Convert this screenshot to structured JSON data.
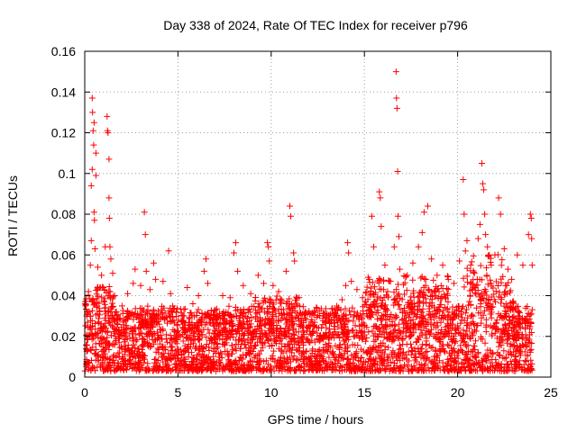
{
  "chart_data": {
    "type": "scatter",
    "title": "Day 338 of 2024, Rate Of TEC Index for receiver p796",
    "xlabel": "GPS time / hours",
    "ylabel": "ROTI / TECUs",
    "xlim": [
      0,
      25
    ],
    "ylim": [
      0,
      0.16
    ],
    "xticks": [
      0,
      5,
      10,
      15,
      20,
      25
    ],
    "yticks": [
      0,
      0.02,
      0.04,
      0.06,
      0.08,
      0.1,
      0.12,
      0.14,
      0.16
    ],
    "xtick_labels": [
      "0",
      "5",
      "10",
      "15",
      "20",
      "25"
    ],
    "ytick_labels": [
      "0",
      "0.02",
      "0.04",
      "0.06",
      "0.08",
      "0.1",
      "0.12",
      "0.14",
      "0.16"
    ],
    "grid": true,
    "marker": "+",
    "color": "#ff0000",
    "time_range_hours": [
      0,
      24
    ],
    "dense_band": [
      0.003,
      0.02
    ],
    "series": [
      {
        "name": "ROTI",
        "points": [
          [
            0.1,
            0.03
          ],
          [
            0.2,
            0.042
          ],
          [
            0.3,
            0.055
          ],
          [
            0.35,
            0.067
          ],
          [
            0.35,
            0.094
          ],
          [
            0.4,
            0.102
          ],
          [
            0.4,
            0.137
          ],
          [
            0.42,
            0.13
          ],
          [
            0.45,
            0.121
          ],
          [
            0.48,
            0.114
          ],
          [
            0.5,
            0.125
          ],
          [
            0.5,
            0.081
          ],
          [
            0.52,
            0.077
          ],
          [
            0.55,
            0.063
          ],
          [
            0.6,
            0.11
          ],
          [
            0.6,
            0.099
          ],
          [
            0.7,
            0.054
          ],
          [
            0.9,
            0.05
          ],
          [
            1.0,
            0.044
          ],
          [
            1.1,
            0.064
          ],
          [
            1.2,
            0.128
          ],
          [
            1.22,
            0.121
          ],
          [
            1.25,
            0.12
          ],
          [
            1.3,
            0.107
          ],
          [
            1.3,
            0.088
          ],
          [
            1.32,
            0.078
          ],
          [
            1.35,
            0.064
          ],
          [
            1.4,
            0.058
          ],
          [
            1.5,
            0.051
          ],
          [
            1.6,
            0.04
          ],
          [
            2.0,
            0.035
          ],
          [
            2.3,
            0.041
          ],
          [
            2.6,
            0.046
          ],
          [
            2.7,
            0.053
          ],
          [
            3.0,
            0.045
          ],
          [
            3.2,
            0.081
          ],
          [
            3.25,
            0.07
          ],
          [
            3.3,
            0.052
          ],
          [
            3.5,
            0.043
          ],
          [
            3.7,
            0.056
          ],
          [
            3.8,
            0.048
          ],
          [
            4.2,
            0.047
          ],
          [
            4.5,
            0.062
          ],
          [
            4.6,
            0.041
          ],
          [
            4.9,
            0.032
          ],
          [
            5.5,
            0.044
          ],
          [
            5.8,
            0.036
          ],
          [
            6.1,
            0.04
          ],
          [
            6.4,
            0.052
          ],
          [
            6.5,
            0.058
          ],
          [
            6.6,
            0.046
          ],
          [
            7.0,
            0.033
          ],
          [
            7.4,
            0.04
          ],
          [
            7.8,
            0.039
          ],
          [
            8.0,
            0.061
          ],
          [
            8.1,
            0.066
          ],
          [
            8.2,
            0.052
          ],
          [
            8.5,
            0.045
          ],
          [
            8.9,
            0.041
          ],
          [
            9.3,
            0.05
          ],
          [
            9.6,
            0.046
          ],
          [
            9.8,
            0.066
          ],
          [
            9.85,
            0.064
          ],
          [
            9.9,
            0.057
          ],
          [
            10.1,
            0.045
          ],
          [
            10.4,
            0.042
          ],
          [
            10.8,
            0.052
          ],
          [
            11.0,
            0.084
          ],
          [
            11.05,
            0.079
          ],
          [
            11.2,
            0.061
          ],
          [
            11.25,
            0.057
          ],
          [
            11.5,
            0.039
          ],
          [
            11.8,
            0.031
          ],
          [
            12.2,
            0.027
          ],
          [
            12.6,
            0.03
          ],
          [
            13.0,
            0.031
          ],
          [
            13.4,
            0.033
          ],
          [
            13.8,
            0.038
          ],
          [
            14.0,
            0.045
          ],
          [
            14.1,
            0.066
          ],
          [
            14.15,
            0.061
          ],
          [
            14.3,
            0.047
          ],
          [
            14.6,
            0.043
          ],
          [
            14.9,
            0.039
          ],
          [
            15.2,
            0.049
          ],
          [
            15.4,
            0.079
          ],
          [
            15.5,
            0.064
          ],
          [
            15.8,
            0.091
          ],
          [
            15.85,
            0.088
          ],
          [
            15.9,
            0.074
          ],
          [
            16.1,
            0.055
          ],
          [
            16.4,
            0.047
          ],
          [
            16.6,
            0.064
          ],
          [
            16.7,
            0.15
          ],
          [
            16.72,
            0.137
          ],
          [
            16.75,
            0.132
          ],
          [
            16.78,
            0.101
          ],
          [
            16.8,
            0.079
          ],
          [
            16.85,
            0.069
          ],
          [
            16.9,
            0.053
          ],
          [
            17.3,
            0.05
          ],
          [
            17.6,
            0.056
          ],
          [
            17.9,
            0.064
          ],
          [
            18.1,
            0.071
          ],
          [
            18.2,
            0.081
          ],
          [
            18.4,
            0.084
          ],
          [
            18.6,
            0.058
          ],
          [
            18.9,
            0.05
          ],
          [
            19.2,
            0.055
          ],
          [
            19.5,
            0.048
          ],
          [
            19.8,
            0.046
          ],
          [
            20.1,
            0.057
          ],
          [
            20.3,
            0.097
          ],
          [
            20.35,
            0.08
          ],
          [
            20.5,
            0.067
          ],
          [
            20.7,
            0.055
          ],
          [
            20.9,
            0.051
          ],
          [
            21.1,
            0.068
          ],
          [
            21.2,
            0.075
          ],
          [
            21.3,
            0.105
          ],
          [
            21.35,
            0.095
          ],
          [
            21.4,
            0.092
          ],
          [
            21.45,
            0.08
          ],
          [
            21.5,
            0.07
          ],
          [
            21.6,
            0.064
          ],
          [
            21.7,
            0.06
          ],
          [
            21.8,
            0.055
          ],
          [
            22.0,
            0.06
          ],
          [
            22.2,
            0.088
          ],
          [
            22.3,
            0.08
          ],
          [
            22.5,
            0.063
          ],
          [
            22.7,
            0.053
          ],
          [
            22.9,
            0.048
          ],
          [
            23.2,
            0.06
          ],
          [
            23.5,
            0.055
          ],
          [
            23.8,
            0.07
          ],
          [
            23.9,
            0.08
          ],
          [
            23.95,
            0.078
          ],
          [
            23.97,
            0.068
          ],
          [
            24.0,
            0.055
          ]
        ]
      }
    ]
  }
}
